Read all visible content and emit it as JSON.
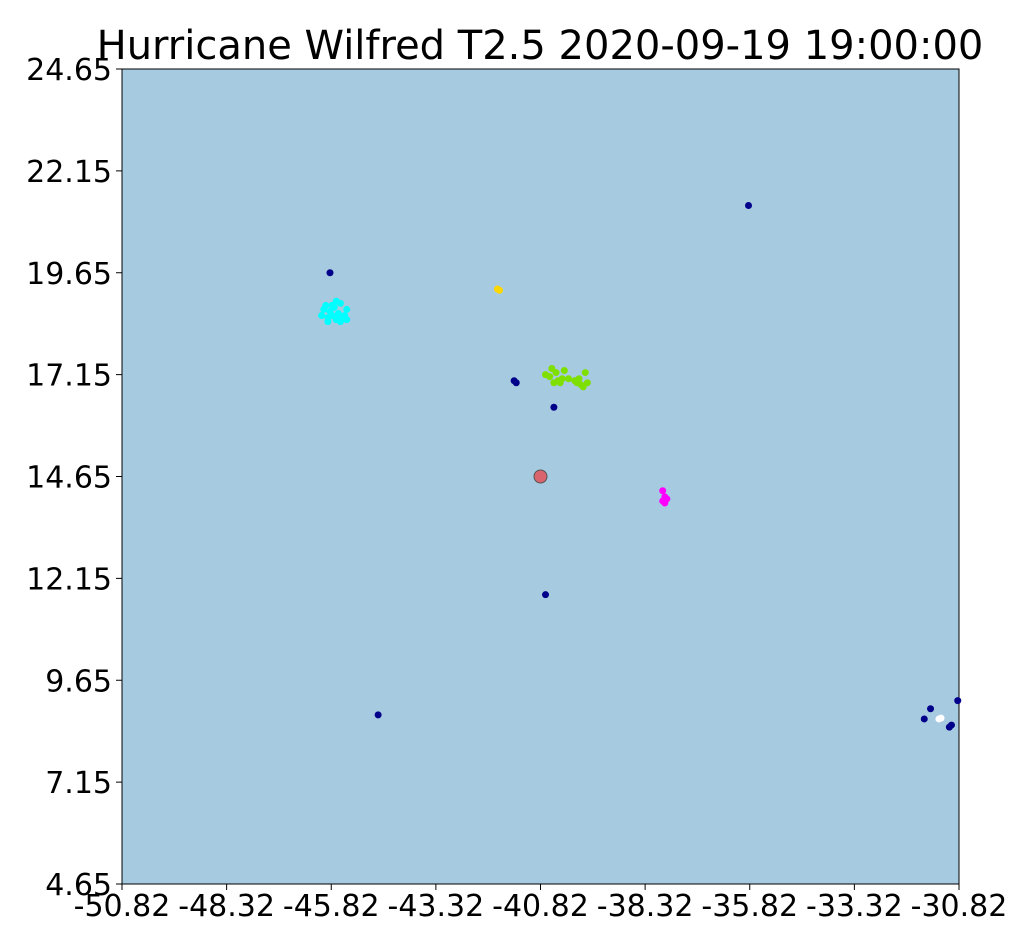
{
  "chart_data": {
    "type": "scatter",
    "title": "Hurricane Wilfred T2.5 2020-09-19 19:00:00",
    "xlabel": "",
    "ylabel": "",
    "xlim": [
      -50.82,
      -30.82
    ],
    "ylim": [
      4.65,
      24.65
    ],
    "x_ticks": [
      "-50.82",
      "-48.32",
      "-45.82",
      "-43.32",
      "-40.82",
      "-38.32",
      "-35.82",
      "-33.32",
      "-30.82"
    ],
    "y_ticks": [
      "4.65",
      "7.15",
      "9.65",
      "12.15",
      "14.65",
      "17.15",
      "19.65",
      "22.15",
      "24.65"
    ],
    "grid": false,
    "legend": "none",
    "background_color": "#a6cae0",
    "center": {
      "x": -40.82,
      "y": 14.65,
      "color": "#d9646e"
    },
    "series": [
      {
        "color": "#00008b",
        "points": [
          [
            -45.85,
            19.65
          ],
          [
            -35.85,
            21.3
          ],
          [
            -41.45,
            17.0
          ],
          [
            -41.4,
            16.95
          ],
          [
            -40.5,
            16.35
          ],
          [
            -40.7,
            11.75
          ],
          [
            -44.7,
            8.8
          ],
          [
            -30.85,
            9.15
          ],
          [
            -31.5,
            8.95
          ],
          [
            -31.65,
            8.7
          ],
          [
            -31.0,
            8.55
          ],
          [
            -31.05,
            8.5
          ]
        ]
      },
      {
        "color": "#00ffff",
        "points": [
          [
            -46.0,
            18.75
          ],
          [
            -45.8,
            18.85
          ],
          [
            -45.6,
            18.9
          ],
          [
            -45.9,
            18.55
          ],
          [
            -45.7,
            18.5
          ],
          [
            -45.5,
            18.6
          ],
          [
            -45.85,
            18.7
          ],
          [
            -45.65,
            18.65
          ],
          [
            -45.45,
            18.75
          ],
          [
            -45.9,
            18.45
          ],
          [
            -45.6,
            18.45
          ],
          [
            -45.75,
            18.8
          ],
          [
            -46.05,
            18.6
          ],
          [
            -45.55,
            18.55
          ],
          [
            -45.7,
            18.95
          ],
          [
            -45.95,
            18.85
          ],
          [
            -45.45,
            18.5
          ],
          [
            -45.8,
            18.6
          ]
        ]
      },
      {
        "color": "#ffd700",
        "points": [
          [
            -41.85,
            19.25
          ],
          [
            -41.8,
            19.22
          ]
        ]
      },
      {
        "color": "#7fe000",
        "points": [
          [
            -40.6,
            17.1
          ],
          [
            -40.45,
            17.2
          ],
          [
            -40.3,
            17.05
          ],
          [
            -40.5,
            16.95
          ],
          [
            -40.7,
            17.15
          ],
          [
            -40.25,
            17.25
          ],
          [
            -40.4,
            17.0
          ],
          [
            -40.55,
            17.3
          ],
          [
            -40.35,
            16.95
          ],
          [
            -40.15,
            17.05
          ],
          [
            -39.95,
            16.95
          ],
          [
            -39.85,
            16.9
          ],
          [
            -39.7,
            16.95
          ],
          [
            -39.9,
            17.05
          ],
          [
            -39.75,
            17.2
          ],
          [
            -40.0,
            17.0
          ],
          [
            -39.8,
            16.85
          ]
        ]
      },
      {
        "color": "#ff00ff",
        "points": [
          [
            -37.9,
            14.3
          ],
          [
            -37.85,
            14.15
          ],
          [
            -37.9,
            14.05
          ],
          [
            -37.85,
            14.0
          ],
          [
            -37.8,
            14.1
          ]
        ]
      },
      {
        "color": "#ffffff",
        "points": [
          [
            -31.3,
            8.7
          ],
          [
            -31.25,
            8.72
          ]
        ]
      }
    ]
  }
}
